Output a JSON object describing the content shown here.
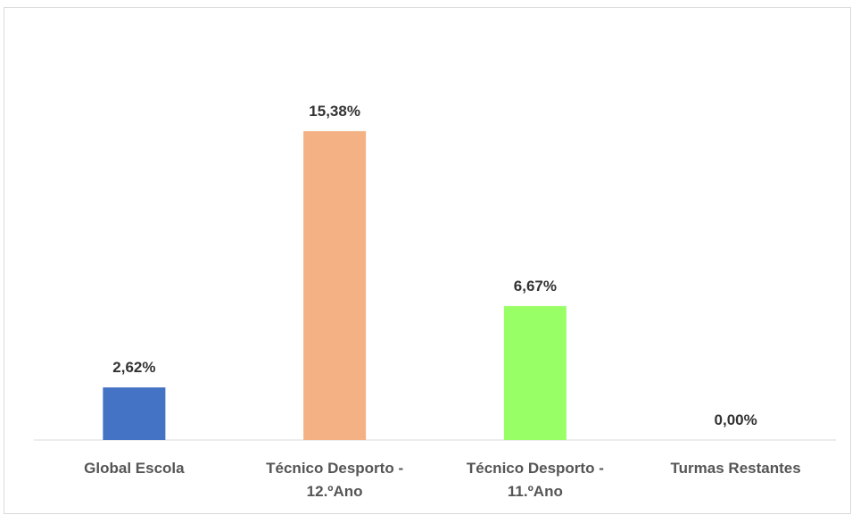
{
  "chart_data": {
    "type": "bar",
    "categories": [
      [
        "Global Escola"
      ],
      [
        "Técnico Desporto -",
        "12.ºAno"
      ],
      [
        "Técnico Desporto -",
        "11.ºAno"
      ],
      [
        "Turmas Restantes"
      ]
    ],
    "values": [
      2.62,
      15.38,
      6.67,
      0.0
    ],
    "data_labels": [
      "2,62%",
      "15,38%",
      "6,67%",
      "0,00%"
    ],
    "colors": [
      "#4472c4",
      "#f4b183",
      "#99ff66",
      "#7f7f7f"
    ],
    "ylim": [
      0,
      20
    ],
    "grid": false,
    "legend": "none"
  }
}
